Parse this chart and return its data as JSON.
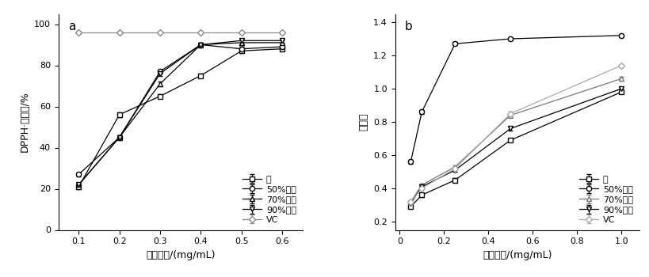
{
  "panel_a": {
    "title": "a",
    "xlabel": "质量浓度/(mg/mL)",
    "ylabel": "DPPH·清除率/%",
    "xlim": [
      0.05,
      0.65
    ],
    "ylim": [
      0,
      105
    ],
    "xticks": [
      0.1,
      0.2,
      0.3,
      0.4,
      0.5,
      0.6
    ],
    "yticks": [
      0,
      20,
      40,
      60,
      80,
      100
    ],
    "x": [
      0.1,
      0.2,
      0.3,
      0.4,
      0.5,
      0.6
    ],
    "series": {
      "水": [
        21,
        56,
        65,
        75,
        87,
        88
      ],
      "50%乙醇": [
        27,
        45,
        77,
        90,
        88,
        89
      ],
      "70%乙醇": [
        22,
        45,
        71,
        90,
        91,
        91
      ],
      "90%乙醇": [
        22,
        45,
        76,
        90,
        92,
        92
      ],
      "VC": [
        96,
        96,
        96,
        96,
        96,
        96
      ]
    },
    "markers": {
      "水": "s",
      "50%乙醇": "o",
      "70%乙醇": "^",
      "90%乙醇": "v",
      "VC": "D"
    },
    "line_colors": {
      "水": "#000000",
      "50%乙醇": "#000000",
      "70%乙醇": "#000000",
      "90%乙醇": "#000000",
      "VC": "#888888"
    },
    "error_bars": {
      "水": [
        1.0,
        1.0,
        1.0,
        1.0,
        1.0,
        1.0
      ],
      "50%乙醇": [
        1.0,
        1.0,
        1.0,
        1.0,
        1.0,
        1.0
      ],
      "70%乙醇": [
        1.0,
        1.0,
        1.0,
        1.0,
        1.0,
        1.0
      ],
      "90%乙醇": [
        1.0,
        1.0,
        1.0,
        1.0,
        1.0,
        1.0
      ],
      "VC": [
        0.5,
        0.5,
        0.5,
        0.5,
        0.5,
        0.5
      ]
    }
  },
  "panel_b": {
    "title": "b",
    "xlabel": "质量浓度/(mg/mL)",
    "ylabel": "还原力",
    "xlim": [
      -0.02,
      1.08
    ],
    "ylim": [
      0.15,
      1.45
    ],
    "xticks": [
      0.0,
      0.2,
      0.4,
      0.6,
      0.8,
      1.0
    ],
    "yticks": [
      0.2,
      0.4,
      0.6,
      0.8,
      1.0,
      1.2,
      1.4
    ],
    "x": [
      0.05,
      0.1,
      0.25,
      0.5,
      1.0
    ],
    "series": {
      "水": [
        0.29,
        0.36,
        0.45,
        0.69,
        0.98
      ],
      "50%乙醇": [
        0.56,
        0.86,
        1.27,
        1.3,
        1.32
      ],
      "70%乙醇": [
        0.32,
        0.42,
        0.53,
        0.84,
        1.06
      ],
      "90%乙醇": [
        0.31,
        0.41,
        0.51,
        0.76,
        1.0
      ],
      "VC": [
        0.32,
        0.4,
        0.52,
        0.85,
        1.14
      ]
    },
    "markers": {
      "水": "s",
      "50%乙醇": "o",
      "70%乙醇": "^",
      "90%乙醇": "v",
      "VC": "D"
    },
    "line_colors": {
      "水": "#000000",
      "50%乙醇": "#000000",
      "70%乙醇": "#777777",
      "90%乙醇": "#000000",
      "VC": "#aaaaaa"
    },
    "error_bars": {
      "水": [
        0.01,
        0.01,
        0.01,
        0.01,
        0.01
      ],
      "50%乙醇": [
        0.01,
        0.01,
        0.01,
        0.01,
        0.01
      ],
      "70%乙醇": [
        0.01,
        0.01,
        0.01,
        0.01,
        0.01
      ],
      "90%乙醇": [
        0.01,
        0.01,
        0.01,
        0.01,
        0.01
      ],
      "VC": [
        0.01,
        0.01,
        0.01,
        0.01,
        0.01
      ]
    }
  },
  "legend_order": [
    "水",
    "50%乙醇",
    "70%乙醇",
    "90%乙醇",
    "VC"
  ],
  "legend_labels": [
    "水",
    "50%乙醇",
    "70%乙醇",
    "90%乙醇",
    "VC"
  ],
  "font_size": 9,
  "label_fontsize": 9
}
